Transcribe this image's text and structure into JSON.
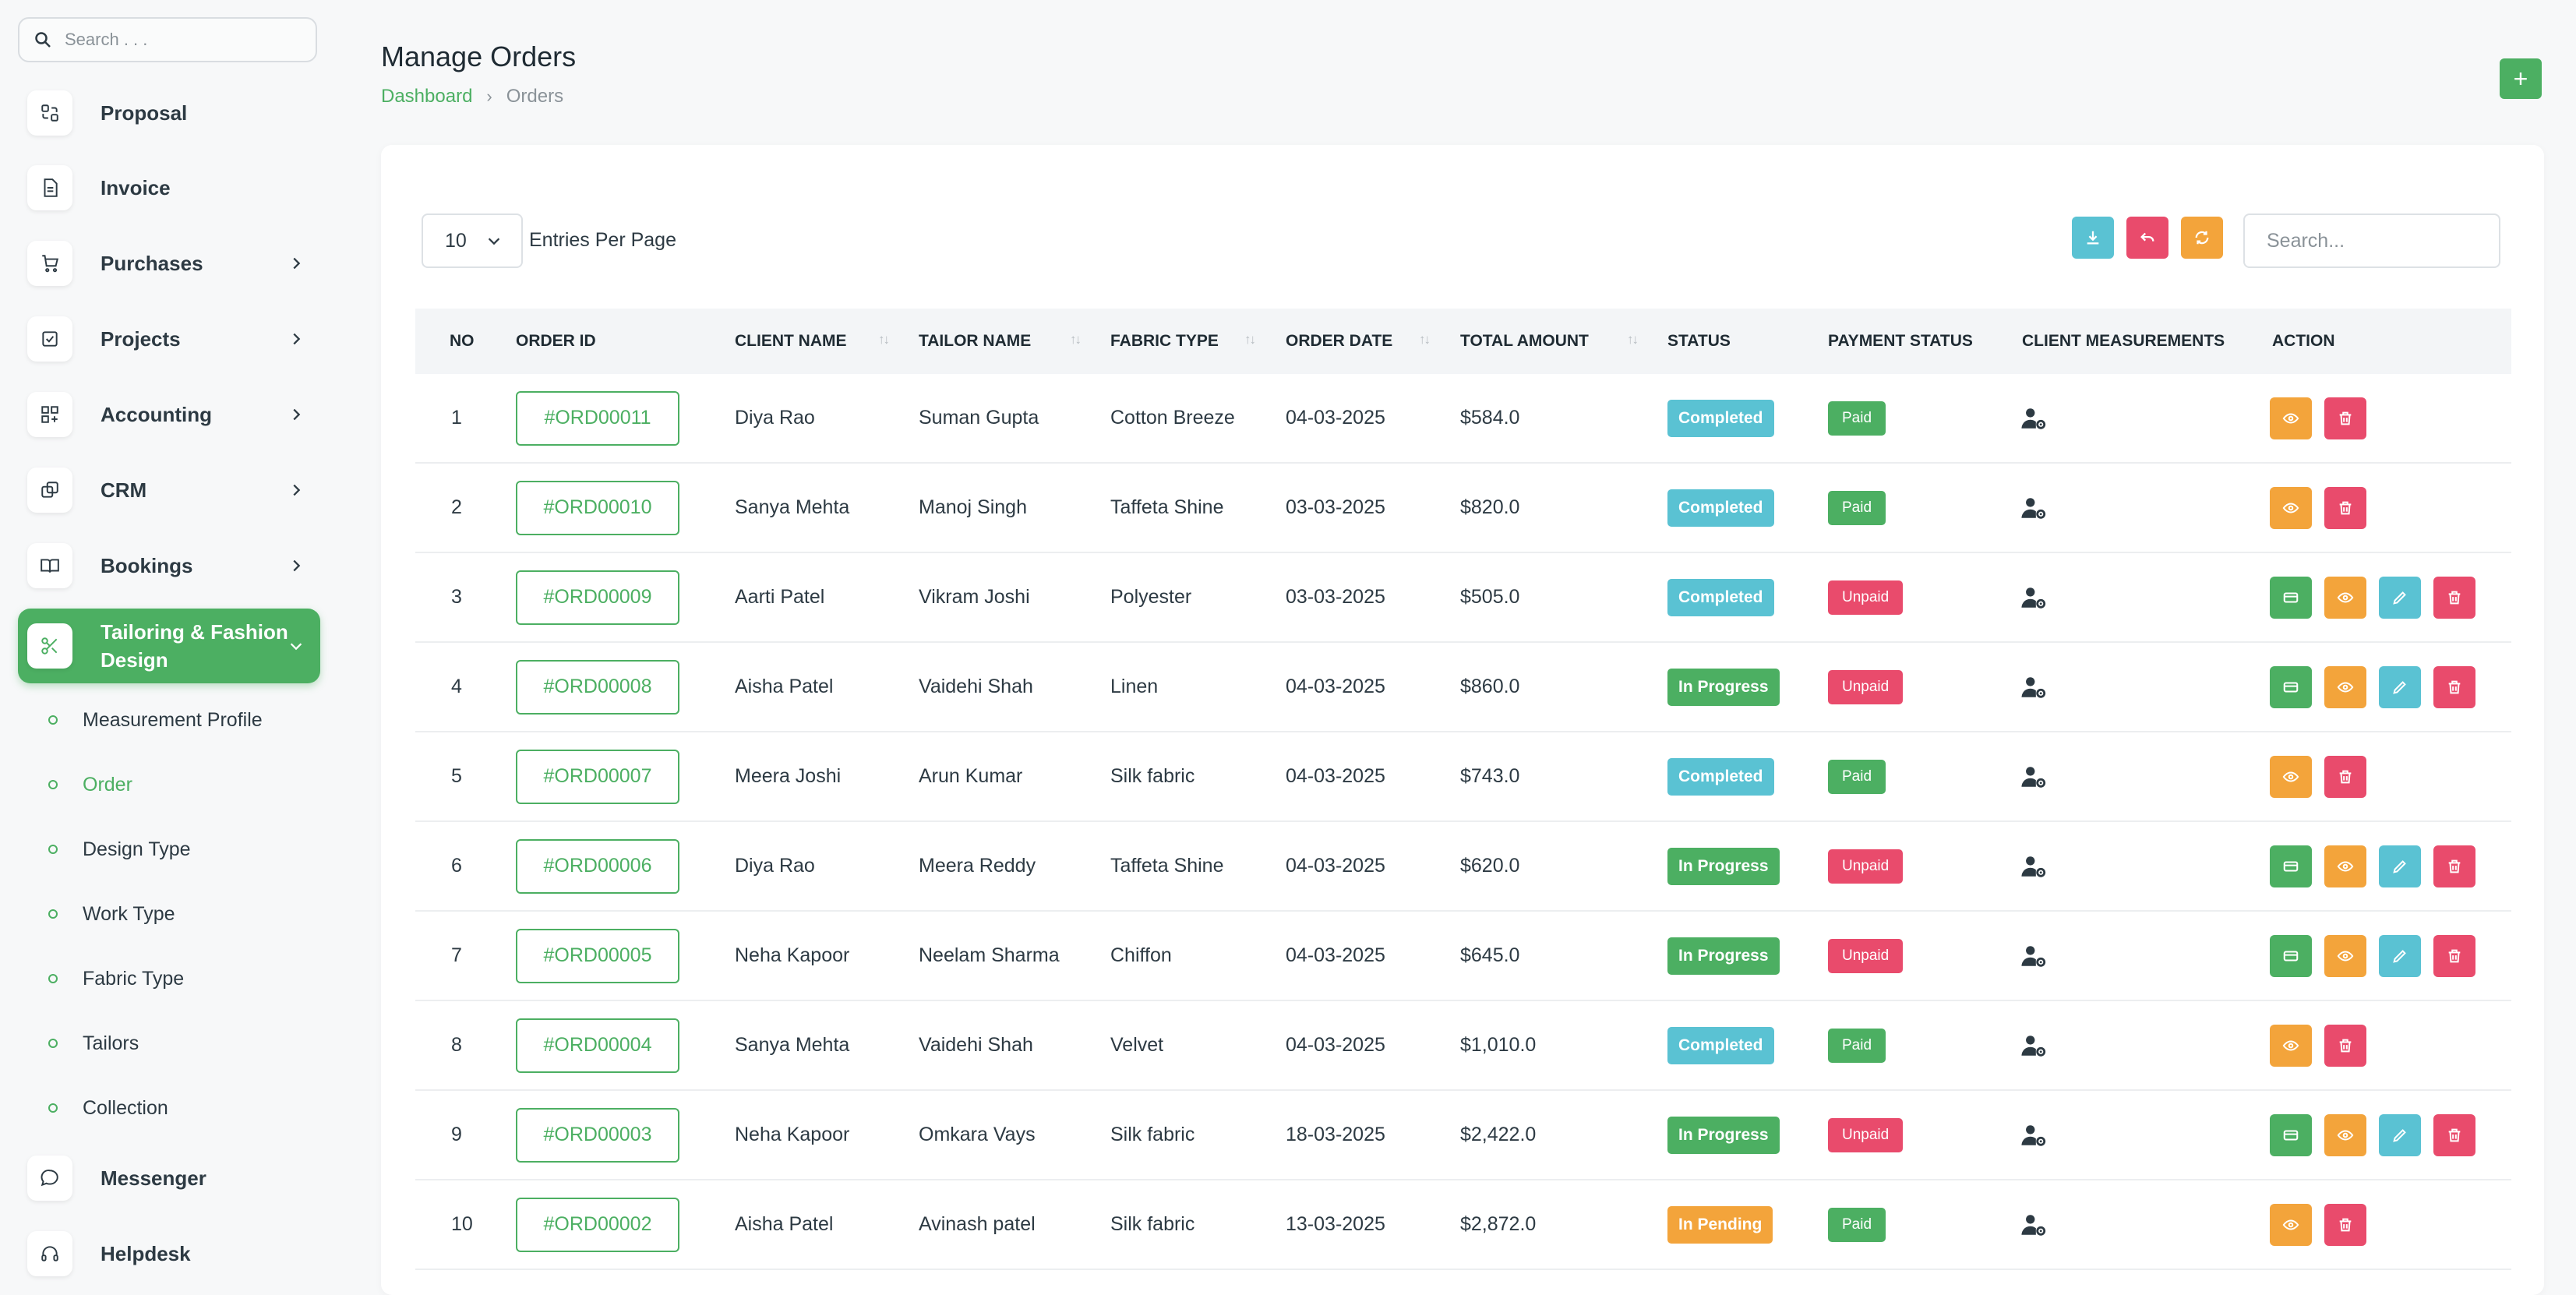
{
  "colors": {
    "primary": "#4caf62",
    "completed": "#5ac2d3",
    "in_progress": "#4caf62",
    "pending": "#f3a43b",
    "paid": "#4caf62",
    "unpaid": "#e94b6c"
  },
  "sidebar": {
    "search_placeholder": "Search . . .",
    "items": [
      {
        "label": "Proposal",
        "icon": "proposal-icon"
      },
      {
        "label": "Invoice",
        "icon": "invoice-icon"
      },
      {
        "label": "Purchases",
        "icon": "cart-icon"
      },
      {
        "label": "Projects",
        "icon": "projects-icon"
      },
      {
        "label": "Accounting",
        "icon": "accounting-icon"
      },
      {
        "label": "CRM",
        "icon": "crm-icon"
      },
      {
        "label": "Bookings",
        "icon": "book-icon"
      },
      {
        "label": "Tailoring & Fashion Design",
        "icon": "scissors-icon"
      },
      {
        "label": "Messenger",
        "icon": "chat-icon"
      },
      {
        "label": "Helpdesk",
        "icon": "headset-icon"
      }
    ],
    "subitems": [
      "Measurement Profile",
      "Order",
      "Design Type",
      "Work Type",
      "Fabric Type",
      "Tailors",
      "Collection"
    ]
  },
  "header": {
    "title": "Manage Orders",
    "breadcrumb": [
      "Dashboard",
      "Orders"
    ],
    "add_button": "+"
  },
  "toolbar": {
    "entries_value": "10",
    "entries_label": "Entries Per Page",
    "search_placeholder": "Search..."
  },
  "table": {
    "columns": [
      "NO",
      "ORDER ID",
      "CLIENT NAME",
      "TAILOR NAME",
      "FABRIC TYPE",
      "ORDER DATE",
      "TOTAL AMOUNT",
      "STATUS",
      "PAYMENT STATUS",
      "CLIENT MEASUREMENTS",
      "ACTION"
    ],
    "rows": [
      {
        "no": "1",
        "order_id": "#ORD00011",
        "client": "Diya Rao",
        "tailor": "Suman Gupta",
        "fabric": "Cotton Breeze",
        "date": "04-03-2025",
        "amount": "$584.0",
        "status": "Completed",
        "payment": "Paid",
        "actions": [
          "view",
          "delete"
        ]
      },
      {
        "no": "2",
        "order_id": "#ORD00010",
        "client": "Sanya Mehta",
        "tailor": "Manoj Singh",
        "fabric": "Taffeta Shine",
        "date": "03-03-2025",
        "amount": "$820.0",
        "status": "Completed",
        "payment": "Paid",
        "actions": [
          "view",
          "delete"
        ]
      },
      {
        "no": "3",
        "order_id": "#ORD00009",
        "client": "Aarti Patel",
        "tailor": "Vikram Joshi",
        "fabric": "Polyester",
        "date": "03-03-2025",
        "amount": "$505.0",
        "status": "Completed",
        "payment": "Unpaid",
        "actions": [
          "pay",
          "view",
          "edit",
          "delete"
        ]
      },
      {
        "no": "4",
        "order_id": "#ORD00008",
        "client": "Aisha Patel",
        "tailor": "Vaidehi Shah",
        "fabric": "Linen",
        "date": "04-03-2025",
        "amount": "$860.0",
        "status": "In Progress",
        "payment": "Unpaid",
        "actions": [
          "pay",
          "view",
          "edit",
          "delete"
        ]
      },
      {
        "no": "5",
        "order_id": "#ORD00007",
        "client": "Meera Joshi",
        "tailor": "Arun Kumar",
        "fabric": "Silk fabric",
        "date": "04-03-2025",
        "amount": "$743.0",
        "status": "Completed",
        "payment": "Paid",
        "actions": [
          "view",
          "delete"
        ]
      },
      {
        "no": "6",
        "order_id": "#ORD00006",
        "client": "Diya Rao",
        "tailor": "Meera Reddy",
        "fabric": "Taffeta Shine",
        "date": "04-03-2025",
        "amount": "$620.0",
        "status": "In Progress",
        "payment": "Unpaid",
        "actions": [
          "pay",
          "view",
          "edit",
          "delete"
        ]
      },
      {
        "no": "7",
        "order_id": "#ORD00005",
        "client": "Neha Kapoor",
        "tailor": "Neelam Sharma",
        "fabric": "Chiffon",
        "date": "04-03-2025",
        "amount": "$645.0",
        "status": "In Progress",
        "payment": "Unpaid",
        "actions": [
          "pay",
          "view",
          "edit",
          "delete"
        ]
      },
      {
        "no": "8",
        "order_id": "#ORD00004",
        "client": "Sanya Mehta",
        "tailor": "Vaidehi Shah",
        "fabric": "Velvet",
        "date": "04-03-2025",
        "amount": "$1,010.0",
        "status": "Completed",
        "payment": "Paid",
        "actions": [
          "view",
          "delete"
        ]
      },
      {
        "no": "9",
        "order_id": "#ORD00003",
        "client": "Neha Kapoor",
        "tailor": "Omkara Vays",
        "fabric": "Silk fabric",
        "date": "18-03-2025",
        "amount": "$2,422.0",
        "status": "In Progress",
        "payment": "Unpaid",
        "actions": [
          "pay",
          "view",
          "edit",
          "delete"
        ]
      },
      {
        "no": "10",
        "order_id": "#ORD00002",
        "client": "Aisha Patel",
        "tailor": "Avinash patel",
        "fabric": "Silk fabric",
        "date": "13-03-2025",
        "amount": "$2,872.0",
        "status": "In Pending",
        "payment": "Paid",
        "actions": [
          "view",
          "delete"
        ]
      }
    ]
  }
}
